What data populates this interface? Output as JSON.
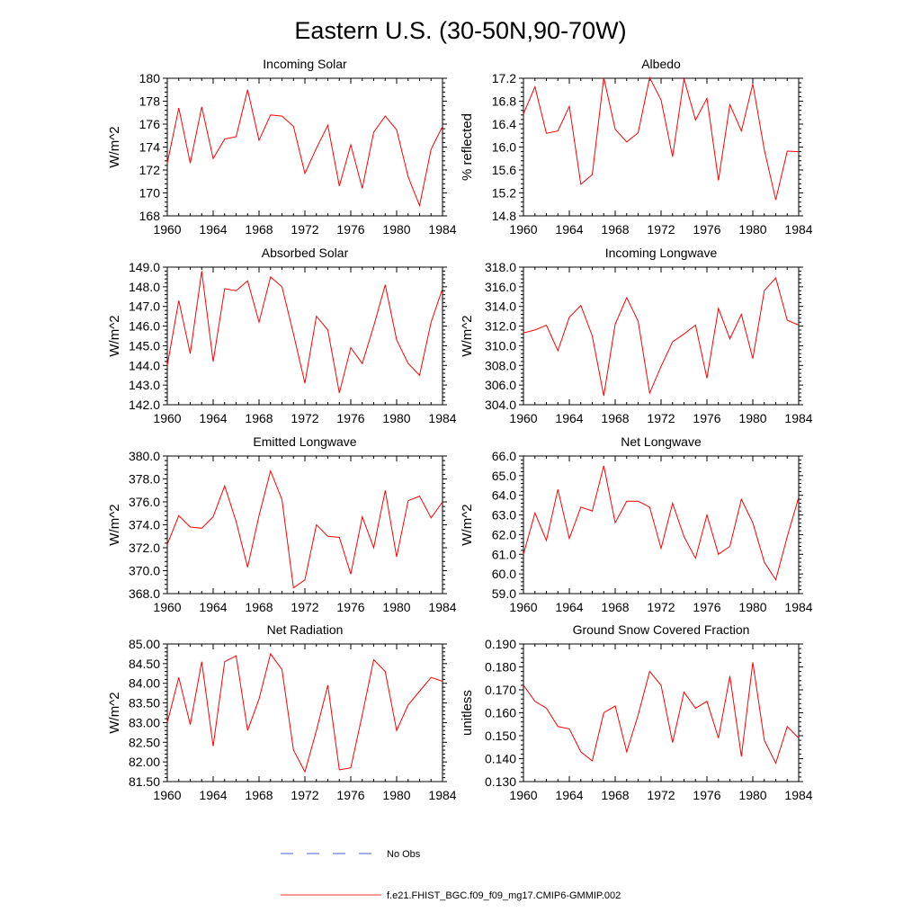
{
  "figure": {
    "title": "Eastern U.S. (30-50N,90-70W)"
  },
  "legend": {
    "items": [
      {
        "label": "No Obs",
        "color": "#4b5bd6",
        "style": "dashed"
      },
      {
        "label": "f.e21.FHIST_BGC.f09_f09_mg17.CMIP6-GMMIP.002",
        "color": "#ff2020",
        "style": "solid"
      }
    ]
  },
  "chart_data": [
    {
      "type": "line",
      "title": "Incoming Solar",
      "ylabel": "W/m^2",
      "xlim": [
        1960,
        1984
      ],
      "ylim": [
        168,
        180
      ],
      "yticks": [
        "168",
        "170",
        "172",
        "174",
        "176",
        "178",
        "180"
      ],
      "xticks": [
        "1960",
        "1964",
        "1968",
        "1972",
        "1976",
        "1980",
        "1984"
      ],
      "color": "#ff0000",
      "x": [
        1960,
        1961,
        1962,
        1963,
        1964,
        1965,
        1966,
        1967,
        1968,
        1969,
        1970,
        1971,
        1972,
        1973,
        1974,
        1975,
        1976,
        1977,
        1978,
        1979,
        1980,
        1981,
        1982,
        1983,
        1984
      ],
      "values": [
        172.6,
        177.4,
        172.6,
        177.5,
        173.0,
        174.7,
        174.9,
        179.0,
        174.6,
        176.8,
        176.7,
        175.8,
        171.7,
        173.9,
        175.9,
        170.6,
        174.2,
        170.4,
        175.3,
        176.7,
        175.5,
        171.4,
        168.9,
        173.8,
        175.8
      ]
    },
    {
      "type": "line",
      "title": "Albedo",
      "ylabel": "% reflected",
      "xlim": [
        1960,
        1984
      ],
      "ylim": [
        14.8,
        17.2
      ],
      "yticks": [
        "14.8",
        "15.2",
        "15.6",
        "16.0",
        "16.4",
        "16.8",
        "17.2"
      ],
      "xticks": [
        "1960",
        "1964",
        "1968",
        "1972",
        "1976",
        "1980",
        "1984"
      ],
      "color": "#ff0000",
      "x": [
        1960,
        1961,
        1962,
        1963,
        1964,
        1965,
        1966,
        1967,
        1968,
        1969,
        1970,
        1971,
        1972,
        1973,
        1974,
        1975,
        1976,
        1977,
        1978,
        1979,
        1980,
        1981,
        1982,
        1983,
        1984
      ],
      "values": [
        16.58,
        17.05,
        16.24,
        16.28,
        16.71,
        15.35,
        15.52,
        17.21,
        16.31,
        16.09,
        16.25,
        17.21,
        16.82,
        15.83,
        17.19,
        16.47,
        16.85,
        15.42,
        16.74,
        16.28,
        17.1,
        15.95,
        15.08,
        15.93,
        15.92
      ]
    },
    {
      "type": "line",
      "title": "Absorbed Solar",
      "ylabel": "W/m^2",
      "xlim": [
        1960,
        1984
      ],
      "ylim": [
        142.0,
        149.0
      ],
      "yticks": [
        "142.0",
        "143.0",
        "144.0",
        "145.0",
        "146.0",
        "147.0",
        "148.0",
        "149.0"
      ],
      "xticks": [
        "1960",
        "1964",
        "1968",
        "1972",
        "1976",
        "1980",
        "1984"
      ],
      "color": "#ff0000",
      "x": [
        1960,
        1961,
        1962,
        1963,
        1964,
        1965,
        1966,
        1967,
        1968,
        1969,
        1970,
        1971,
        1972,
        1973,
        1974,
        1975,
        1976,
        1977,
        1978,
        1979,
        1980,
        1981,
        1982,
        1983,
        1984
      ],
      "values": [
        144.0,
        147.3,
        144.6,
        148.8,
        144.2,
        147.9,
        147.8,
        148.3,
        146.2,
        148.5,
        148.0,
        145.6,
        143.1,
        146.5,
        145.8,
        142.6,
        144.9,
        144.1,
        146.0,
        148.1,
        145.3,
        144.1,
        143.5,
        146.2,
        147.9
      ]
    },
    {
      "type": "line",
      "title": "Incoming Longwave",
      "ylabel": "W/m^2",
      "xlim": [
        1960,
        1984
      ],
      "ylim": [
        304.0,
        318.0
      ],
      "yticks": [
        "304.0",
        "306.0",
        "308.0",
        "310.0",
        "312.0",
        "314.0",
        "316.0",
        "318.0"
      ],
      "xticks": [
        "1960",
        "1964",
        "1968",
        "1972",
        "1976",
        "1980",
        "1984"
      ],
      "color": "#ff0000",
      "x": [
        1960,
        1961,
        1962,
        1963,
        1964,
        1965,
        1966,
        1967,
        1968,
        1969,
        1970,
        1971,
        1972,
        1973,
        1974,
        1975,
        1976,
        1977,
        1978,
        1979,
        1980,
        1981,
        1982,
        1983,
        1984
      ],
      "values": [
        311.3,
        311.6,
        312.1,
        309.5,
        312.9,
        314.1,
        311.0,
        304.9,
        312.2,
        314.9,
        312.5,
        305.2,
        307.9,
        310.4,
        311.2,
        312.1,
        306.7,
        313.8,
        310.7,
        313.2,
        308.7,
        315.6,
        316.9,
        312.6,
        312.1
      ]
    },
    {
      "type": "line",
      "title": "Emitted Longwave",
      "ylabel": "W/m^2",
      "xlim": [
        1960,
        1984
      ],
      "ylim": [
        368.0,
        380.0
      ],
      "yticks": [
        "368.0",
        "370.0",
        "372.0",
        "374.0",
        "376.0",
        "378.0",
        "380.0"
      ],
      "xticks": [
        "1960",
        "1964",
        "1968",
        "1972",
        "1976",
        "1980",
        "1984"
      ],
      "color": "#ff0000",
      "x": [
        1960,
        1961,
        1962,
        1963,
        1964,
        1965,
        1966,
        1967,
        1968,
        1969,
        1970,
        1971,
        1972,
        1973,
        1974,
        1975,
        1976,
        1977,
        1978,
        1979,
        1980,
        1981,
        1982,
        1983,
        1984
      ],
      "values": [
        372.3,
        374.8,
        373.8,
        373.7,
        374.7,
        377.4,
        374.3,
        370.3,
        374.8,
        378.7,
        376.2,
        368.5,
        369.2,
        374.0,
        373.0,
        372.9,
        369.7,
        374.7,
        372.0,
        377.0,
        371.2,
        376.1,
        376.5,
        374.6,
        376.0
      ]
    },
    {
      "type": "line",
      "title": "Net Longwave",
      "ylabel": "W/m^2",
      "xlim": [
        1960,
        1984
      ],
      "ylim": [
        59.0,
        66.0
      ],
      "yticks": [
        "59.0",
        "60.0",
        "61.0",
        "62.0",
        "63.0",
        "64.0",
        "65.0",
        "66.0"
      ],
      "xticks": [
        "1960",
        "1964",
        "1968",
        "1972",
        "1976",
        "1980",
        "1984"
      ],
      "color": "#ff0000",
      "x": [
        1960,
        1961,
        1962,
        1963,
        1964,
        1965,
        1966,
        1967,
        1968,
        1969,
        1970,
        1971,
        1972,
        1973,
        1974,
        1975,
        1976,
        1977,
        1978,
        1979,
        1980,
        1981,
        1982,
        1983,
        1984
      ],
      "values": [
        61.0,
        63.1,
        61.7,
        64.3,
        61.8,
        63.4,
        63.2,
        65.5,
        62.6,
        63.7,
        63.7,
        63.4,
        61.3,
        63.6,
        61.9,
        60.8,
        63.0,
        61.0,
        61.4,
        63.8,
        62.6,
        60.6,
        59.7,
        61.9,
        63.9
      ]
    },
    {
      "type": "line",
      "title": "Net Radiation",
      "ylabel": "W/m^2",
      "xlim": [
        1960,
        1984
      ],
      "ylim": [
        81.5,
        85.0
      ],
      "yticks": [
        "81.50",
        "82.00",
        "82.50",
        "83.00",
        "83.50",
        "84.00",
        "84.50",
        "85.00"
      ],
      "xticks": [
        "1960",
        "1964",
        "1968",
        "1972",
        "1976",
        "1980",
        "1984"
      ],
      "color": "#ff0000",
      "x": [
        1960,
        1961,
        1962,
        1963,
        1964,
        1965,
        1966,
        1967,
        1968,
        1969,
        1970,
        1971,
        1972,
        1973,
        1974,
        1975,
        1976,
        1977,
        1978,
        1979,
        1980,
        1981,
        1982,
        1983,
        1984
      ],
      "values": [
        83.0,
        84.15,
        82.95,
        84.55,
        82.4,
        84.55,
        84.7,
        82.8,
        83.6,
        84.75,
        84.35,
        82.3,
        81.75,
        82.8,
        83.95,
        81.8,
        81.85,
        83.2,
        84.6,
        84.3,
        82.8,
        83.45,
        83.8,
        84.15,
        84.05
      ]
    },
    {
      "type": "line",
      "title": "Ground Snow Covered Fraction",
      "ylabel": "unitless",
      "xlim": [
        1960,
        1984
      ],
      "ylim": [
        0.13,
        0.19
      ],
      "yticks": [
        "0.130",
        "0.140",
        "0.150",
        "0.160",
        "0.170",
        "0.180",
        "0.190"
      ],
      "xticks": [
        "1960",
        "1964",
        "1968",
        "1972",
        "1976",
        "1980",
        "1984"
      ],
      "color": "#ff0000",
      "x": [
        1960,
        1961,
        1962,
        1963,
        1964,
        1965,
        1966,
        1967,
        1968,
        1969,
        1970,
        1971,
        1972,
        1973,
        1974,
        1975,
        1976,
        1977,
        1978,
        1979,
        1980,
        1981,
        1982,
        1983,
        1984
      ],
      "values": [
        0.172,
        0.165,
        0.162,
        0.154,
        0.153,
        0.143,
        0.139,
        0.16,
        0.163,
        0.143,
        0.159,
        0.178,
        0.172,
        0.147,
        0.169,
        0.162,
        0.165,
        0.149,
        0.176,
        0.141,
        0.182,
        0.148,
        0.138,
        0.154,
        0.149
      ]
    }
  ]
}
